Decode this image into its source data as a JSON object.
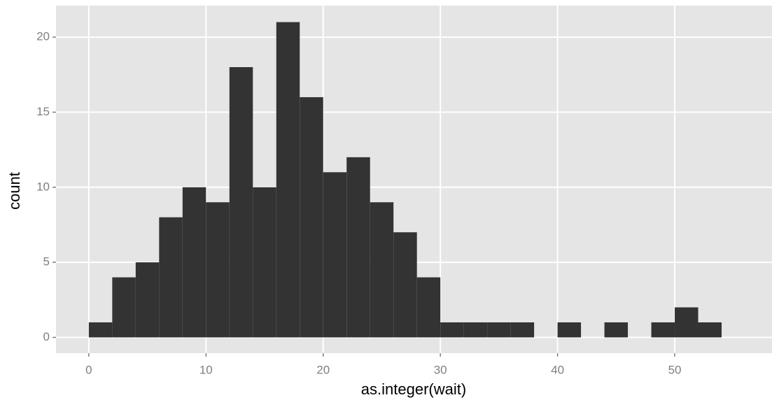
{
  "chart_data": {
    "type": "histogram",
    "x_label": "as.integer(wait)",
    "y_label": "count",
    "bins": [
      0,
      2,
      4,
      6,
      8,
      10,
      12,
      14,
      16,
      18,
      20,
      22,
      24,
      26,
      28,
      30,
      32,
      34,
      36,
      38,
      40,
      42,
      44,
      46,
      48,
      50,
      52,
      54
    ],
    "values": [
      1,
      4,
      5,
      8,
      10,
      9,
      18,
      10,
      21,
      16,
      11,
      12,
      9,
      7,
      4,
      1,
      1,
      1,
      1,
      0,
      1,
      0,
      1,
      0,
      1,
      2,
      1
    ],
    "color": "#333333",
    "xlim": [
      -2.8,
      58.3
    ],
    "ylim": [
      -1.05,
      22.1
    ],
    "xticks": [
      0,
      10,
      20,
      30,
      40,
      50
    ],
    "yticks": [
      0,
      5,
      10,
      15,
      20
    ],
    "grid": true
  }
}
